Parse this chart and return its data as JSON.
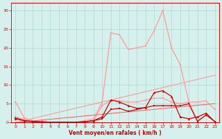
{
  "x": [
    0,
    1,
    2,
    3,
    4,
    5,
    6,
    7,
    8,
    9,
    10,
    11,
    12,
    13,
    14,
    15,
    16,
    17,
    18,
    19,
    20,
    21,
    22,
    23
  ],
  "line_gust_light": [
    5.5,
    1.2,
    0.5,
    0.2,
    0.1,
    0.1,
    0.1,
    0.1,
    0.5,
    1.0,
    5.5,
    24.0,
    23.5,
    19.5,
    20.0,
    20.5,
    24.5,
    30.0,
    20.0,
    15.5,
    5.5,
    5.5,
    5.8,
    3.5
  ],
  "line_mean_light": [
    1.5,
    0.8,
    0.3,
    0.2,
    0.1,
    0.1,
    0.1,
    0.1,
    0.2,
    0.5,
    4.5,
    6.0,
    5.8,
    5.5,
    5.5,
    6.0,
    6.5,
    6.5,
    5.5,
    5.0,
    5.5,
    0.5,
    2.0,
    0.3
  ],
  "diag_upper": [
    0.0,
    0.55,
    1.1,
    1.65,
    2.2,
    2.75,
    3.3,
    3.85,
    4.4,
    4.95,
    5.5,
    6.05,
    6.6,
    7.15,
    7.7,
    8.25,
    8.8,
    9.35,
    9.9,
    10.45,
    11.0,
    11.55,
    12.1,
    12.65
  ],
  "diag_lower": [
    0.0,
    0.22,
    0.44,
    0.66,
    0.88,
    1.1,
    1.32,
    1.54,
    1.76,
    1.98,
    2.2,
    2.42,
    2.64,
    2.86,
    3.08,
    3.3,
    3.52,
    3.74,
    3.96,
    4.18,
    4.4,
    4.62,
    4.84,
    5.06
  ],
  "line_gust_dark": [
    1.0,
    0.5,
    0.3,
    0.2,
    0.1,
    0.1,
    0.1,
    0.1,
    0.2,
    0.5,
    1.5,
    6.0,
    5.5,
    4.5,
    3.8,
    4.0,
    8.0,
    8.5,
    7.0,
    1.5,
    1.0,
    1.5,
    2.5,
    0.2
  ],
  "line_mean_dark": [
    1.2,
    0.5,
    0.2,
    0.1,
    0.1,
    0.1,
    0.1,
    0.1,
    0.2,
    0.5,
    1.0,
    3.5,
    3.8,
    3.0,
    3.5,
    4.0,
    4.5,
    4.5,
    4.5,
    4.5,
    5.0,
    0.3,
    2.0,
    0.3
  ],
  "color_light": "#ff9999",
  "color_medium": "#ff6666",
  "color_dark": "#cc0000",
  "bg_color": "#d6f0ee",
  "grid_color": "#b0d8d0",
  "xlabel": "Vent moyen/en rafales ( km/h )",
  "ylim": [
    0,
    32
  ],
  "xlim": [
    -0.5,
    23.5
  ],
  "yticks": [
    0,
    5,
    10,
    15,
    20,
    25,
    30
  ],
  "xticks": [
    0,
    1,
    2,
    3,
    4,
    5,
    6,
    7,
    8,
    9,
    10,
    11,
    12,
    13,
    14,
    15,
    16,
    17,
    18,
    19,
    20,
    21,
    22,
    23
  ]
}
